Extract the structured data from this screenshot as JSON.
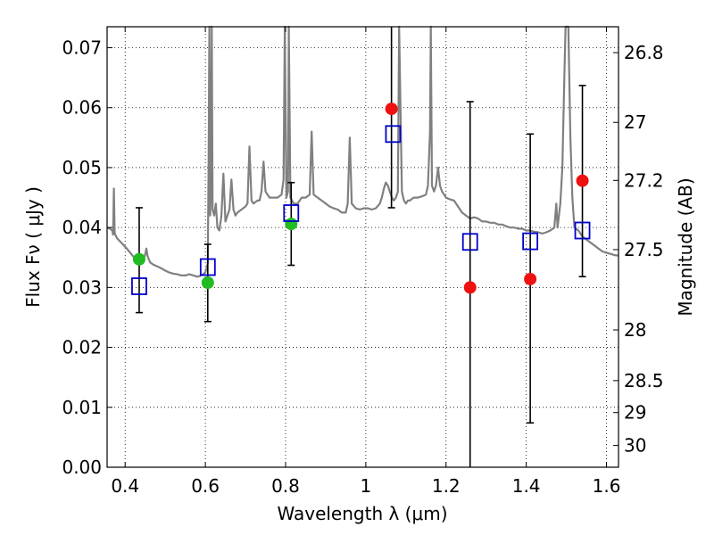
{
  "chart_data": {
    "type": "scatter",
    "xlabel": "Wavelength  λ (μm)",
    "ylabel": "Flux  Fν  ( μJy )",
    "y2label": "Magnitude (AB)",
    "xlim": [
      0.355,
      1.63
    ],
    "ylim": [
      0.0,
      0.0735
    ],
    "grid": true,
    "x_ticks": [
      {
        "value": 0.4,
        "label": "0.4"
      },
      {
        "value": 0.6,
        "label": "0.6"
      },
      {
        "value": 0.8,
        "label": "0.8"
      },
      {
        "value": 1.0,
        "label": "1"
      },
      {
        "value": 1.2,
        "label": "1.2"
      },
      {
        "value": 1.4,
        "label": "1.4"
      },
      {
        "value": 1.6,
        "label": "1.6"
      }
    ],
    "y_ticks": [
      {
        "value": 0.0,
        "label": "0.00"
      },
      {
        "value": 0.01,
        "label": "0.01"
      },
      {
        "value": 0.02,
        "label": "0.02"
      },
      {
        "value": 0.03,
        "label": "0.03"
      },
      {
        "value": 0.04,
        "label": "0.04"
      },
      {
        "value": 0.05,
        "label": "0.05"
      },
      {
        "value": 0.06,
        "label": "0.06"
      },
      {
        "value": 0.07,
        "label": "0.07"
      }
    ],
    "y2_ticks": [
      {
        "value": 26.8,
        "label": "26.8"
      },
      {
        "value": 27.0,
        "label": "27"
      },
      {
        "value": 27.2,
        "label": "27.2"
      },
      {
        "value": 27.5,
        "label": "27.5"
      },
      {
        "value": 28.0,
        "label": "28"
      },
      {
        "value": 28.5,
        "label": "28.5"
      },
      {
        "value": 29.0,
        "label": "29"
      },
      {
        "value": 30.0,
        "label": "30"
      }
    ],
    "observed_points": [
      {
        "x": 0.435,
        "y": 0.0347,
        "err_low": 0.0258,
        "err_high": 0.0433,
        "color": "#22bb22"
      },
      {
        "x": 0.606,
        "y": 0.0308,
        "err_low": 0.0243,
        "err_high": 0.0372,
        "color": "#22bb22"
      },
      {
        "x": 0.814,
        "y": 0.0406,
        "err_low": 0.0337,
        "err_high": 0.0475,
        "color": "#22bb22"
      },
      {
        "x": 1.064,
        "y": 0.0598,
        "err_low": 0.0433,
        "err_high": 0.0735,
        "color": "#ee1111"
      },
      {
        "x": 1.26,
        "y": 0.03,
        "err_low": 0.0,
        "err_high": 0.061,
        "color": "#ee1111"
      },
      {
        "x": 1.41,
        "y": 0.0314,
        "err_low": 0.0074,
        "err_high": 0.0556,
        "color": "#ee1111"
      },
      {
        "x": 1.54,
        "y": 0.0478,
        "err_low": 0.0318,
        "err_high": 0.0637,
        "color": "#ee1111"
      }
    ],
    "model_points": [
      {
        "x": 0.435,
        "y": 0.0302
      },
      {
        "x": 0.606,
        "y": 0.0334
      },
      {
        "x": 0.814,
        "y": 0.0424
      },
      {
        "x": 1.068,
        "y": 0.0556
      },
      {
        "x": 1.26,
        "y": 0.0376
      },
      {
        "x": 1.41,
        "y": 0.0377
      },
      {
        "x": 1.54,
        "y": 0.0395
      }
    ],
    "spectrum": [
      [
        0.355,
        0.04
      ],
      [
        0.362,
        0.0398
      ],
      [
        0.368,
        0.0395
      ],
      [
        0.37,
        0.0388
      ],
      [
        0.372,
        0.0465
      ],
      [
        0.374,
        0.039
      ],
      [
        0.38,
        0.0382
      ],
      [
        0.39,
        0.0375
      ],
      [
        0.4,
        0.0368
      ],
      [
        0.41,
        0.036
      ],
      [
        0.42,
        0.0352
      ],
      [
        0.43,
        0.0345
      ],
      [
        0.44,
        0.0342
      ],
      [
        0.445,
        0.0345
      ],
      [
        0.45,
        0.0355
      ],
      [
        0.453,
        0.0365
      ],
      [
        0.456,
        0.0352
      ],
      [
        0.462,
        0.0342
      ],
      [
        0.47,
        0.0338
      ],
      [
        0.48,
        0.0335
      ],
      [
        0.49,
        0.0332
      ],
      [
        0.5,
        0.0328
      ],
      [
        0.51,
        0.0325
      ],
      [
        0.52,
        0.0323
      ],
      [
        0.53,
        0.0322
      ],
      [
        0.54,
        0.032
      ],
      [
        0.55,
        0.032
      ],
      [
        0.56,
        0.0322
      ],
      [
        0.57,
        0.032
      ],
      [
        0.58,
        0.0318
      ],
      [
        0.59,
        0.032
      ],
      [
        0.6,
        0.0325
      ],
      [
        0.606,
        0.034
      ],
      [
        0.608,
        0.05
      ],
      [
        0.61,
        0.0735
      ],
      [
        0.612,
        0.042
      ],
      [
        0.614,
        0.048
      ],
      [
        0.616,
        0.0735
      ],
      [
        0.618,
        0.043
      ],
      [
        0.622,
        0.042
      ],
      [
        0.626,
        0.044
      ],
      [
        0.63,
        0.04
      ],
      [
        0.635,
        0.0395
      ],
      [
        0.64,
        0.042
      ],
      [
        0.645,
        0.049
      ],
      [
        0.65,
        0.041
      ],
      [
        0.655,
        0.042
      ],
      [
        0.66,
        0.043
      ],
      [
        0.665,
        0.048
      ],
      [
        0.67,
        0.043
      ],
      [
        0.675,
        0.042
      ],
      [
        0.68,
        0.0425
      ],
      [
        0.69,
        0.043
      ],
      [
        0.7,
        0.0435
      ],
      [
        0.705,
        0.044
      ],
      [
        0.71,
        0.0535
      ],
      [
        0.715,
        0.0445
      ],
      [
        0.72,
        0.044
      ],
      [
        0.73,
        0.0445
      ],
      [
        0.735,
        0.0445
      ],
      [
        0.74,
        0.046
      ],
      [
        0.745,
        0.051
      ],
      [
        0.75,
        0.046
      ],
      [
        0.76,
        0.045
      ],
      [
        0.77,
        0.045
      ],
      [
        0.78,
        0.045
      ],
      [
        0.79,
        0.0455
      ],
      [
        0.795,
        0.048
      ],
      [
        0.798,
        0.0735
      ],
      [
        0.802,
        0.045
      ],
      [
        0.806,
        0.046
      ],
      [
        0.808,
        0.0735
      ],
      [
        0.812,
        0.045
      ],
      [
        0.82,
        0.044
      ],
      [
        0.83,
        0.044
      ],
      [
        0.84,
        0.045
      ],
      [
        0.85,
        0.045
      ],
      [
        0.86,
        0.0455
      ],
      [
        0.865,
        0.056
      ],
      [
        0.87,
        0.0455
      ],
      [
        0.88,
        0.045
      ],
      [
        0.89,
        0.0445
      ],
      [
        0.9,
        0.044
      ],
      [
        0.91,
        0.0435
      ],
      [
        0.92,
        0.0432
      ],
      [
        0.93,
        0.043
      ],
      [
        0.94,
        0.0425
      ],
      [
        0.95,
        0.0425
      ],
      [
        0.955,
        0.044
      ],
      [
        0.96,
        0.055
      ],
      [
        0.965,
        0.044
      ],
      [
        0.975,
        0.0432
      ],
      [
        0.985,
        0.043
      ],
      [
        0.995,
        0.0432
      ],
      [
        1.005,
        0.0432
      ],
      [
        1.015,
        0.043
      ],
      [
        1.025,
        0.0432
      ],
      [
        1.035,
        0.044
      ],
      [
        1.04,
        0.045
      ],
      [
        1.045,
        0.0465
      ],
      [
        1.05,
        0.0475
      ],
      [
        1.055,
        0.047
      ],
      [
        1.06,
        0.046
      ],
      [
        1.065,
        0.045
      ],
      [
        1.07,
        0.0445
      ],
      [
        1.075,
        0.045
      ],
      [
        1.08,
        0.046
      ],
      [
        1.083,
        0.0735
      ],
      [
        1.09,
        0.046
      ],
      [
        1.095,
        0.0445
      ],
      [
        1.1,
        0.044
      ],
      [
        1.105,
        0.0445
      ],
      [
        1.11,
        0.0445
      ],
      [
        1.115,
        0.0448
      ],
      [
        1.12,
        0.045
      ],
      [
        1.13,
        0.045
      ],
      [
        1.14,
        0.0452
      ],
      [
        1.15,
        0.0455
      ],
      [
        1.155,
        0.047
      ],
      [
        1.16,
        0.056
      ],
      [
        1.162,
        0.0735
      ],
      [
        1.165,
        0.047
      ],
      [
        1.17,
        0.046
      ],
      [
        1.175,
        0.047
      ],
      [
        1.18,
        0.05
      ],
      [
        1.185,
        0.047
      ],
      [
        1.19,
        0.046
      ],
      [
        1.2,
        0.045
      ],
      [
        1.21,
        0.0447
      ],
      [
        1.22,
        0.0445
      ],
      [
        1.23,
        0.0435
      ],
      [
        1.24,
        0.0425
      ],
      [
        1.25,
        0.042
      ],
      [
        1.26,
        0.0415
      ],
      [
        1.27,
        0.0417
      ],
      [
        1.28,
        0.0415
      ],
      [
        1.29,
        0.041
      ],
      [
        1.3,
        0.041
      ],
      [
        1.31,
        0.0408
      ],
      [
        1.32,
        0.0408
      ],
      [
        1.33,
        0.0405
      ],
      [
        1.34,
        0.0405
      ],
      [
        1.35,
        0.0402
      ],
      [
        1.36,
        0.04
      ],
      [
        1.37,
        0.04
      ],
      [
        1.38,
        0.0398
      ],
      [
        1.39,
        0.0398
      ],
      [
        1.4,
        0.0395
      ],
      [
        1.41,
        0.0395
      ],
      [
        1.42,
        0.0393
      ],
      [
        1.43,
        0.0392
      ],
      [
        1.44,
        0.039
      ],
      [
        1.45,
        0.0392
      ],
      [
        1.46,
        0.0395
      ],
      [
        1.47,
        0.04
      ],
      [
        1.475,
        0.044
      ],
      [
        1.478,
        0.04
      ],
      [
        1.485,
        0.044
      ],
      [
        1.49,
        0.05
      ],
      [
        1.495,
        0.065
      ],
      [
        1.498,
        0.0735
      ],
      [
        1.505,
        0.0735
      ],
      [
        1.51,
        0.055
      ],
      [
        1.515,
        0.045
      ],
      [
        1.52,
        0.04
      ],
      [
        1.53,
        0.0395
      ],
      [
        1.54,
        0.0385
      ],
      [
        1.55,
        0.038
      ],
      [
        1.56,
        0.0375
      ],
      [
        1.57,
        0.037
      ],
      [
        1.58,
        0.0365
      ],
      [
        1.59,
        0.036
      ],
      [
        1.6,
        0.0358
      ],
      [
        1.61,
        0.0356
      ],
      [
        1.62,
        0.0354
      ],
      [
        1.63,
        0.0353
      ]
    ],
    "colors": {
      "spectrum": "#808080",
      "model": "#0000cc",
      "errorbar": "#000000",
      "grid": "#000000"
    }
  }
}
